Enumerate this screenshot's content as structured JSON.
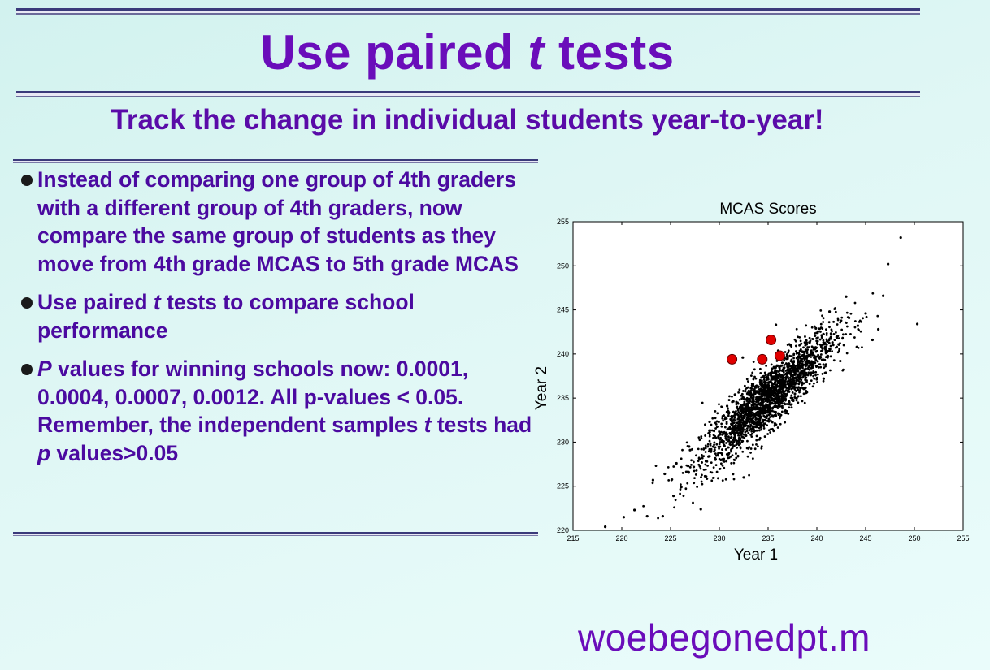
{
  "slide": {
    "title_pre": "Use paired ",
    "title_italic": "t",
    "title_post": " tests",
    "subtitle": "Track the change in individual students year-to-year!",
    "footer": "woebegonedpt.m"
  },
  "bullets": [
    {
      "parts": [
        {
          "t": "Instead of comparing one group of 4th graders with a different group of 4th graders, now compare the same group of students as they move from 4th grade MCAS to 5th grade MCAS",
          "i": false
        }
      ]
    },
    {
      "parts": [
        {
          "t": "Use paired ",
          "i": false
        },
        {
          "t": "t",
          "i": true
        },
        {
          "t": " tests to compare school performance",
          "i": false
        }
      ]
    },
    {
      "parts": [
        {
          "t": "P",
          "i": true
        },
        {
          "t": " values for winning schools now: 0.0001, 0.0004, 0.0007, 0.0012. All p-values < 0.05.  Remember, the independent samples ",
          "i": false
        },
        {
          "t": "t",
          "i": true
        },
        {
          "t": " tests had ",
          "i": false
        },
        {
          "t": "p",
          "i": true
        },
        {
          "t": " values>0.05",
          "i": false
        }
      ]
    }
  ],
  "chart_data": {
    "type": "scatter",
    "title": "MCAS Scores",
    "xlabel": "Year 1",
    "ylabel": "Year 2",
    "xlim": [
      215,
      255
    ],
    "ylim": [
      220,
      255
    ],
    "xticks": [
      215,
      220,
      225,
      230,
      235,
      240,
      245,
      250,
      255
    ],
    "yticks": [
      220,
      225,
      230,
      235,
      240,
      245,
      250,
      255
    ],
    "grid": false,
    "series": [
      {
        "color": "#000000",
        "points": [
          [
            218.3,
            220.4
          ],
          [
            220.2,
            221.5
          ],
          [
            221.3,
            222.3
          ],
          [
            222.6,
            221.6
          ],
          [
            223.2,
            225.7
          ],
          [
            224.2,
            221.6
          ],
          [
            225.3,
            223.9
          ],
          [
            226.1,
            224.9
          ],
          [
            226.8,
            227.3
          ],
          [
            228.1,
            222.4
          ],
          [
            229.0,
            228.4
          ],
          [
            230.4,
            227.9
          ],
          [
            231.6,
            230.7
          ],
          [
            232.5,
            226.0
          ],
          [
            233.1,
            232.6
          ],
          [
            234.1,
            230.3
          ],
          [
            234.9,
            234.2
          ],
          [
            235.7,
            232.1
          ],
          [
            236.3,
            236.4
          ],
          [
            237.2,
            234.3
          ],
          [
            238.0,
            237.4
          ],
          [
            238.9,
            235.6
          ],
          [
            239.8,
            239.0
          ],
          [
            240.7,
            237.2
          ],
          [
            241.6,
            241.3
          ],
          [
            242.4,
            239.2
          ],
          [
            243.3,
            244.1
          ],
          [
            244.2,
            243.2
          ],
          [
            245.0,
            244.6
          ],
          [
            246.3,
            242.8
          ],
          [
            246.8,
            246.6
          ],
          [
            247.3,
            250.2
          ],
          [
            248.6,
            253.2
          ],
          [
            250.3,
            243.4
          ],
          [
            243.0,
            246.5
          ],
          [
            241.3,
            244.8
          ],
          [
            239.9,
            242.9
          ],
          [
            237.3,
            241.0
          ],
          [
            235.8,
            243.3
          ],
          [
            232.4,
            239.6
          ],
          [
            230.8,
            234.1
          ],
          [
            229.0,
            232.3
          ],
          [
            227.0,
            229.1
          ],
          [
            225.6,
            227.6
          ],
          [
            224.4,
            226.4
          ],
          [
            226.9,
            229.5
          ],
          [
            231.6,
            235.4
          ],
          [
            244.1,
            240.8
          ],
          [
            245.7,
            241.6
          ],
          [
            236.9,
            233.5
          ]
        ]
      }
    ],
    "highlighted_schools": {
      "color": "#e00000",
      "points": [
        [
          231.3,
          239.4
        ],
        [
          234.4,
          239.4
        ],
        [
          235.3,
          241.6
        ],
        [
          236.2,
          239.8
        ]
      ]
    }
  }
}
